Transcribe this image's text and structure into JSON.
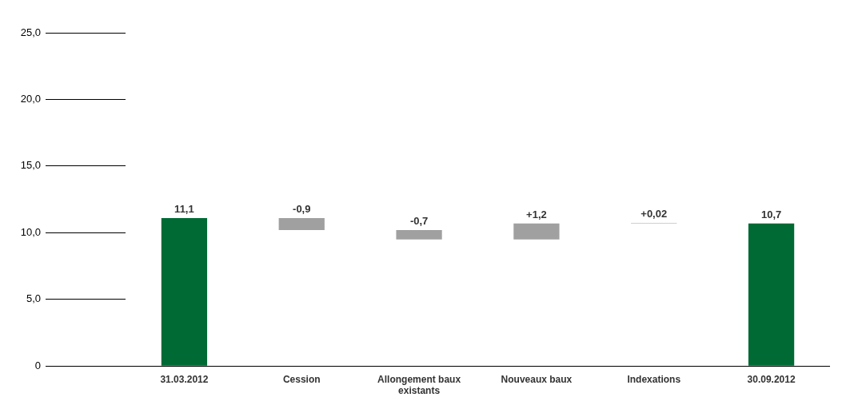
{
  "chart_data": {
    "type": "bar",
    "categories": [
      "31.03.2012",
      "Cession",
      "Allongement baux existants",
      "Nouveaux baux",
      "Indexations",
      "30.09.2012"
    ],
    "base": [
      0,
      11.1,
      10.2,
      9.5,
      10.7,
      0
    ],
    "values": [
      11.1,
      -0.9,
      -0.7,
      1.2,
      0.02,
      10.7
    ],
    "colors": [
      "#006a35",
      "#a0a0a0",
      "#a0a0a0",
      "#a0a0a0",
      "#a0a0a0",
      "#006a35"
    ],
    "value_labels": [
      "11,1",
      "-0,9",
      "-0,7",
      "+1,2",
      "+0,02",
      "10,7"
    ],
    "ylim": [
      0,
      25
    ],
    "yticks": [
      {
        "value": 0,
        "label": "0"
      },
      {
        "value": 5,
        "label": "5,0"
      },
      {
        "value": 10,
        "label": "10,0"
      },
      {
        "value": 15,
        "label": "15,0"
      },
      {
        "value": 20,
        "label": "20,0"
      },
      {
        "value": 25,
        "label": "25,0"
      }
    ],
    "legend": false
  }
}
